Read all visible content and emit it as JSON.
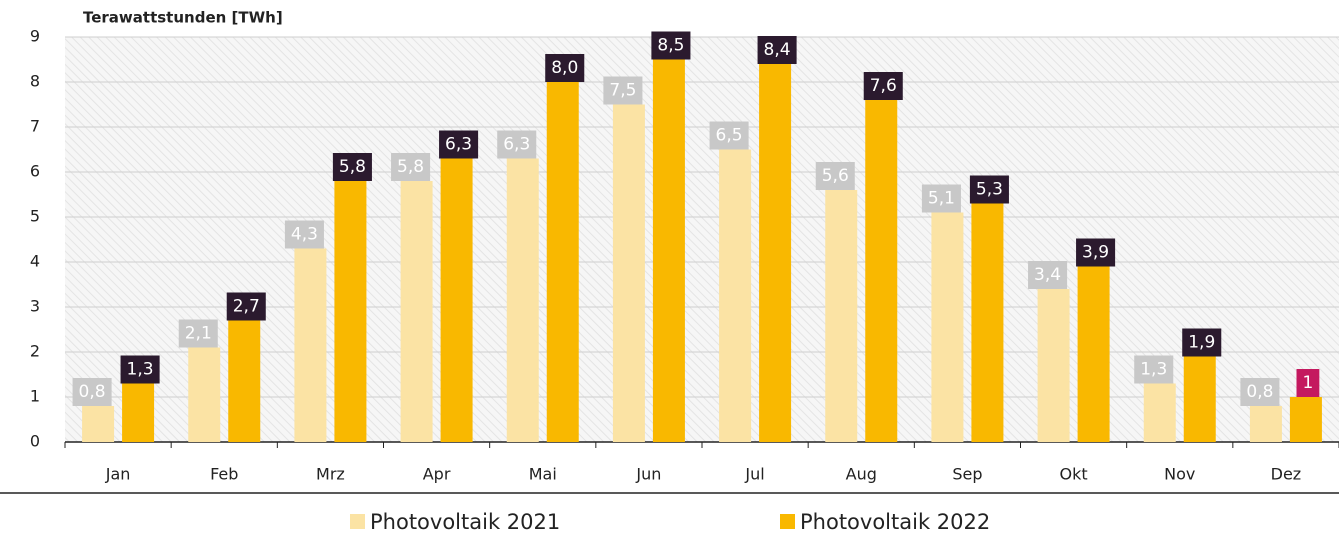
{
  "chart_data": {
    "type": "bar",
    "title": "Terawattstunden [TWh]",
    "categories": [
      "Jan",
      "Feb",
      "Mrz",
      "Apr",
      "Mai",
      "Jun",
      "Jul",
      "Aug",
      "Sep",
      "Okt",
      "Nov",
      "Dez"
    ],
    "series": [
      {
        "name": "Photovoltaik 2021",
        "color": "#fbe3a4",
        "label_color": "#c8c8c8",
        "values": [
          0.8,
          2.1,
          4.3,
          5.8,
          6.3,
          7.5,
          6.5,
          5.6,
          5.1,
          3.4,
          1.3,
          0.8
        ],
        "value_labels": [
          "0,8",
          "2,1",
          "4,3",
          "5,8",
          "6,3",
          "7,5",
          "6,5",
          "5,6",
          "5,1",
          "3,4",
          "1,3",
          "0,8"
        ]
      },
      {
        "name": "Photovoltaik 2022",
        "color": "#f9b800",
        "label_color": "#2b1a2e",
        "label_colors": [
          "#2b1a2e",
          "#2b1a2e",
          "#2b1a2e",
          "#2b1a2e",
          "#2b1a2e",
          "#2b1a2e",
          "#2b1a2e",
          "#2b1a2e",
          "#2b1a2e",
          "#2b1a2e",
          "#2b1a2e",
          "#c4195f"
        ],
        "values": [
          1.3,
          2.7,
          5.8,
          6.3,
          8.0,
          8.5,
          8.4,
          7.6,
          5.3,
          3.9,
          1.9,
          1
        ],
        "value_labels": [
          "1,3",
          "2,7",
          "5,8",
          "6,3",
          "8,0",
          "8,5",
          "8,4",
          "7,6",
          "5,3",
          "3,9",
          "1,9",
          "1"
        ]
      }
    ],
    "ylim": [
      0,
      9
    ],
    "yticks": [
      0,
      1,
      2,
      3,
      4,
      5,
      6,
      7,
      8,
      9
    ],
    "grid": true
  }
}
